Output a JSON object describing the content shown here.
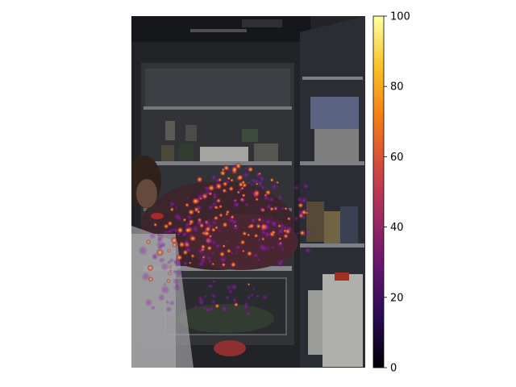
{
  "figure": {
    "image_description_icon": "refrigerator-photo-with-attention-heatmap-overlay",
    "colormap": "inferno",
    "colormap_stops": [
      "#000004",
      "#280b54",
      "#65156e",
      "#9f2a63",
      "#d44842",
      "#f57d15",
      "#fac228",
      "#fcffa4"
    ]
  },
  "colorbar": {
    "min": 0,
    "max": 100,
    "ticks": [
      "0",
      "20",
      "40",
      "60",
      "80",
      "100"
    ]
  }
}
